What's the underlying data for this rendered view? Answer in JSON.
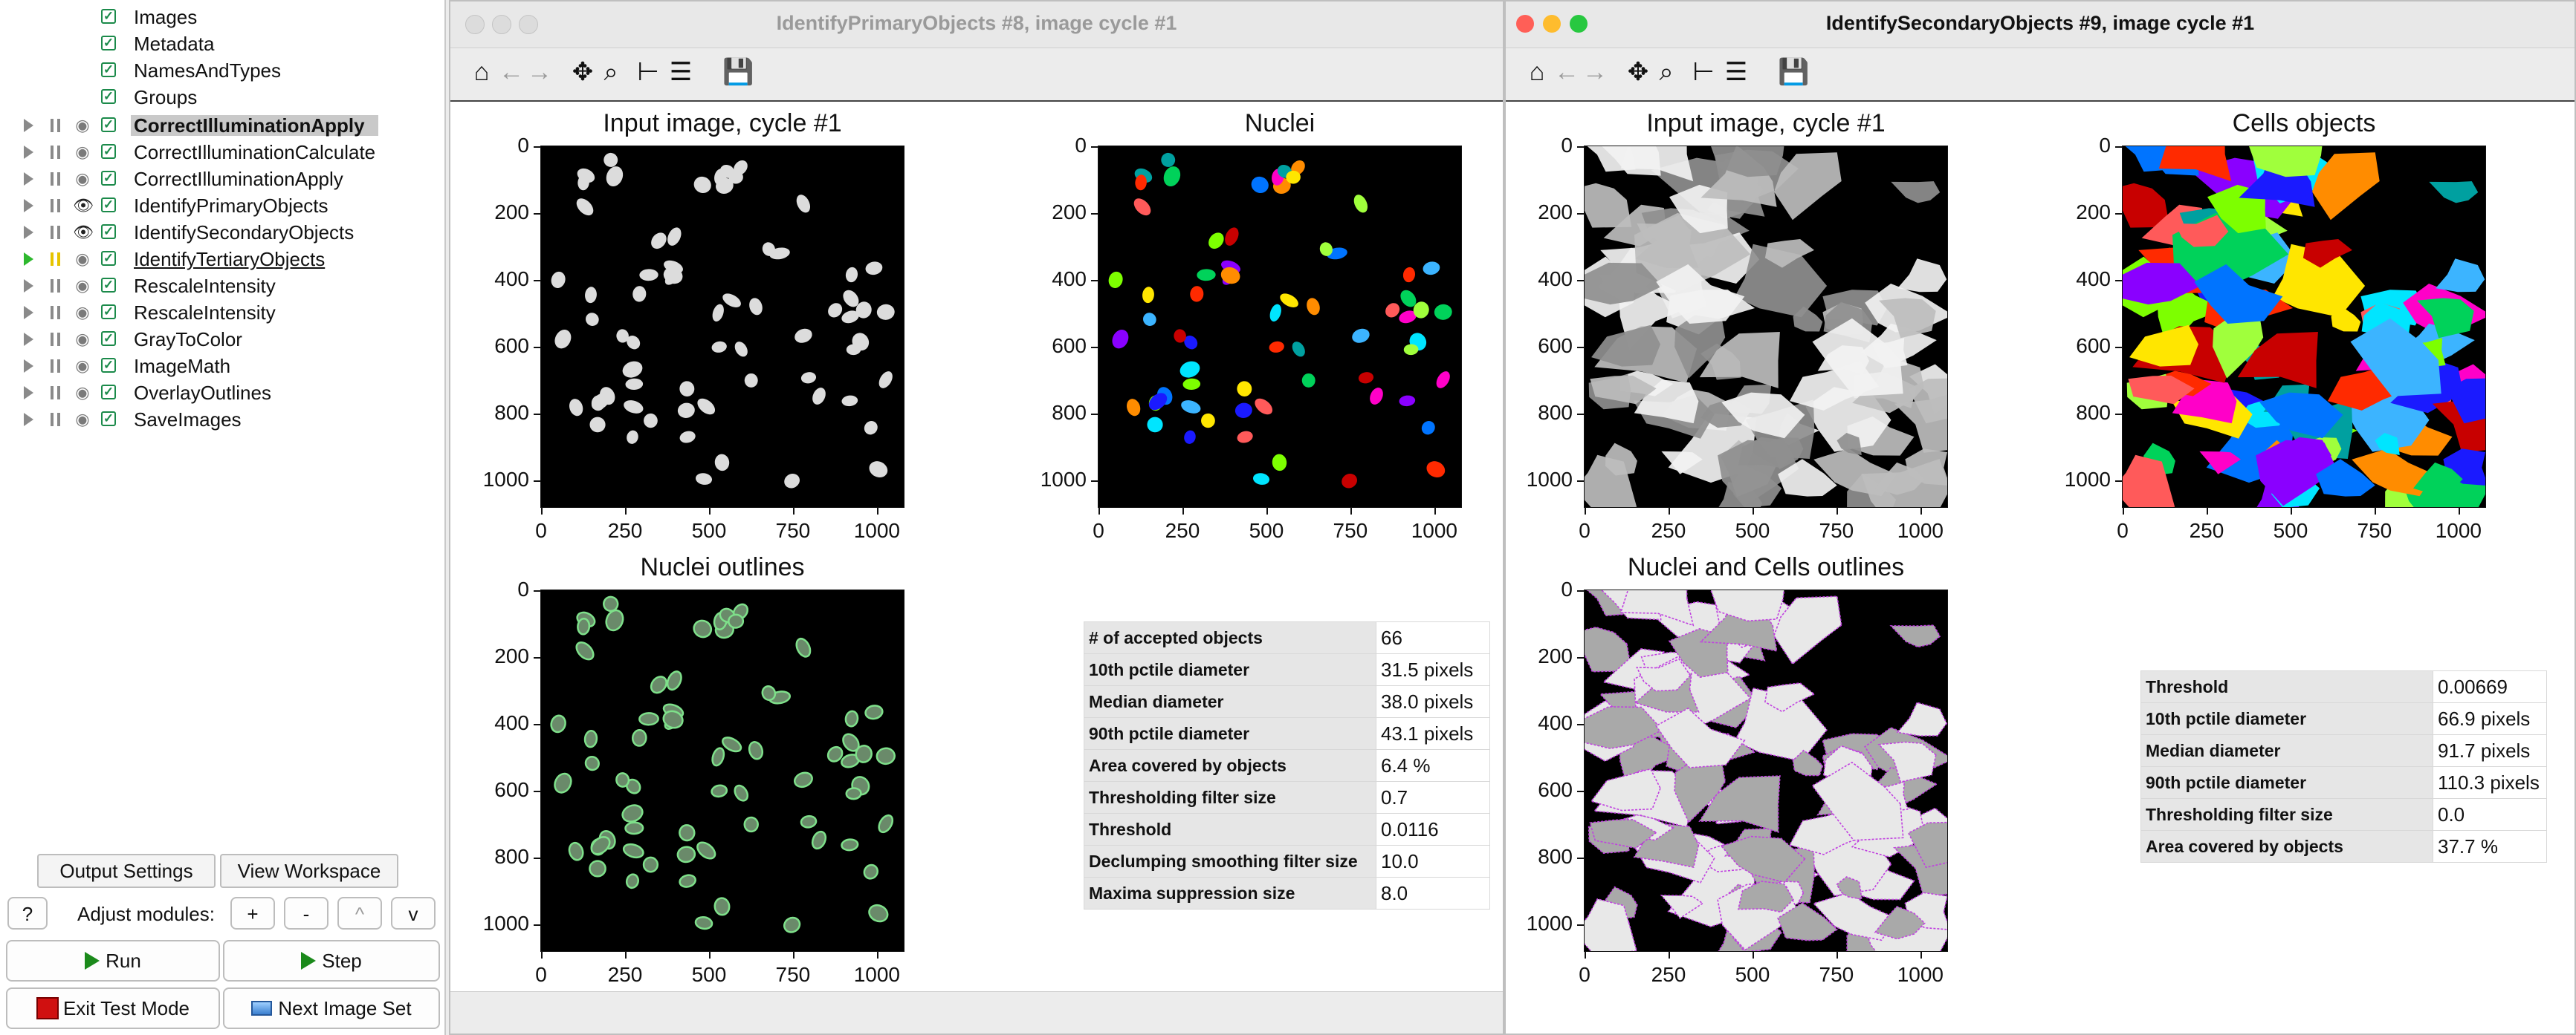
{
  "pipeline": {
    "input_modules": [
      "Images",
      "Metadata",
      "NamesAndTypes",
      "Groups"
    ],
    "modules": [
      {
        "name": "CorrectIlluminationApply",
        "eye": "closed",
        "state": "selected"
      },
      {
        "name": "CorrectIlluminationCalculate",
        "eye": "closed",
        "state": ""
      },
      {
        "name": "CorrectIlluminationApply",
        "eye": "closed",
        "state": ""
      },
      {
        "name": "IdentifyPrimaryObjects",
        "eye": "open",
        "state": ""
      },
      {
        "name": "IdentifySecondaryObjects",
        "eye": "open",
        "state": ""
      },
      {
        "name": "IdentifyTertiaryObjects",
        "eye": "closed",
        "state": "current"
      },
      {
        "name": "RescaleIntensity",
        "eye": "closed",
        "state": ""
      },
      {
        "name": "RescaleIntensity",
        "eye": "closed",
        "state": ""
      },
      {
        "name": "GrayToColor",
        "eye": "closed",
        "state": ""
      },
      {
        "name": "ImageMath",
        "eye": "closed",
        "state": ""
      },
      {
        "name": "OverlayOutlines",
        "eye": "closed",
        "state": ""
      },
      {
        "name": "SaveImages",
        "eye": "closed",
        "state": ""
      }
    ]
  },
  "controls": {
    "output_settings": "Output Settings",
    "view_workspace": "View Workspace",
    "help": "?",
    "adjust_label": "Adjust modules:",
    "add": "+",
    "remove": "-",
    "up": "^",
    "down": "v",
    "run": "Run",
    "step": "Step",
    "exit_test_mode": "Exit Test Mode",
    "next_image_set": "Next Image Set"
  },
  "windows": {
    "primary": {
      "title": "IdentifyPrimaryObjects #8, image cycle #1",
      "plots": {
        "input": "Input image, cycle #1",
        "nuclei": "Nuclei",
        "outlines": "Nuclei outlines"
      },
      "stats": [
        {
          "label": "# of accepted objects",
          "value": "66"
        },
        {
          "label": "10th pctile diameter",
          "value": "31.5 pixels"
        },
        {
          "label": "Median diameter",
          "value": "38.0 pixels"
        },
        {
          "label": "90th pctile diameter",
          "value": "43.1 pixels"
        },
        {
          "label": "Area covered by objects",
          "value": "6.4 %"
        },
        {
          "label": "Thresholding filter size",
          "value": "0.7"
        },
        {
          "label": "Threshold",
          "value": "0.0116"
        },
        {
          "label": "Declumping smoothing filter size",
          "value": "10.0"
        },
        {
          "label": "Maxima suppression size",
          "value": "8.0"
        }
      ]
    },
    "secondary": {
      "title": "IdentifySecondaryObjects #9, image cycle #1",
      "plots": {
        "input": "Input image, cycle #1",
        "cells": "Cells objects",
        "outlines": "Nuclei and Cells outlines"
      },
      "stats": [
        {
          "label": "Threshold",
          "value": "0.00669"
        },
        {
          "label": "10th pctile diameter",
          "value": "66.9 pixels"
        },
        {
          "label": "Median diameter",
          "value": "91.7 pixels"
        },
        {
          "label": "90th pctile diameter",
          "value": "110.3 pixels"
        },
        {
          "label": "Thresholding filter size",
          "value": "0.0"
        },
        {
          "label": "Area covered by objects",
          "value": "37.7 %"
        }
      ]
    }
  },
  "axes": {
    "y_ticks": [
      "0",
      "200",
      "400",
      "600",
      "800",
      "1000"
    ],
    "x_ticks": [
      "0",
      "250",
      "500",
      "750",
      "1000"
    ]
  },
  "colors": {
    "accent_green": "#2eb82e",
    "titlebar": "#e8e8e8",
    "close": "#ff5f57",
    "minimize": "#febc2e",
    "zoom": "#28c840",
    "outline_magenta": "#c040e0",
    "outline_green": "#7ee08a"
  }
}
